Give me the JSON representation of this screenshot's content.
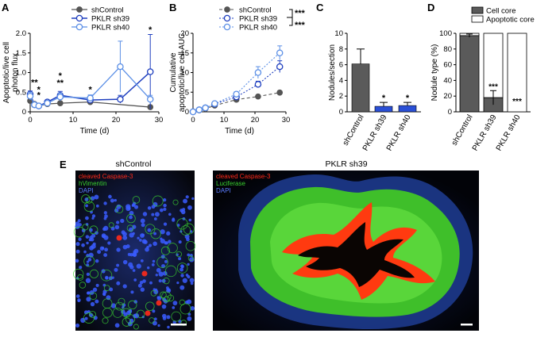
{
  "colors": {
    "control": "#555555",
    "sh39": "#1f3fbf",
    "sh40": "#5b8fe6",
    "cell_core": "#5a5a5a",
    "apoptotic_core": "#ffffff",
    "bar_blue": "#2a4fd6",
    "caspase": "#ff2a1a",
    "vimentin": "#39d030",
    "dapi": "#3a5cff"
  },
  "panels": {
    "A": "A",
    "B": "B",
    "C": "C",
    "D": "D",
    "E": "E"
  },
  "chart_data": [
    {
      "panel": "A",
      "type": "line",
      "xlabel": "Time (d)",
      "ylabel": "Apoptotic/live cell photon flux",
      "ylabel_lines": [
        "Apoptotic/live cell",
        "photon flux"
      ],
      "xlim": [
        0,
        30
      ],
      "ylim": [
        0,
        2.0
      ],
      "xticks": [
        0,
        10,
        20,
        30
      ],
      "yticks": [
        0.0,
        0.5,
        1.0,
        1.5,
        2.0
      ],
      "ytick_labels": [
        "0",
        "0.5",
        "1.0",
        "1.5",
        "2.0"
      ],
      "series": [
        {
          "name": "shControl",
          "x": [
            0,
            1,
            2,
            4,
            7,
            14,
            28
          ],
          "y": [
            0.28,
            0.2,
            0.15,
            0.2,
            0.22,
            0.25,
            0.12
          ],
          "err": [
            0.05,
            0.04,
            0.03,
            0.04,
            0.04,
            0.06,
            0.04
          ]
        },
        {
          "name": "PKLR sh39",
          "x": [
            0,
            1,
            2,
            4,
            7,
            14,
            21,
            28
          ],
          "y": [
            0.45,
            0.18,
            0.15,
            0.25,
            0.42,
            0.3,
            0.32,
            1.02
          ],
          "err": [
            0.08,
            0.05,
            0.04,
            0.05,
            0.1,
            0.08,
            0.1,
            0.95
          ]
        },
        {
          "name": "PKLR sh40",
          "x": [
            0,
            1,
            2,
            4,
            7,
            14,
            21,
            28
          ],
          "y": [
            0.4,
            0.18,
            0.15,
            0.22,
            0.38,
            0.35,
            1.15,
            0.32
          ],
          "err": [
            0.1,
            0.05,
            0.04,
            0.05,
            0.1,
            0.08,
            0.65,
            0.1
          ]
        }
      ],
      "annotations": [
        {
          "text": "**",
          "x": 1,
          "y": 0.68
        },
        {
          "text": "*",
          "x": 2,
          "y": 0.35
        },
        {
          "text": "*",
          "x": 2,
          "y": 0.5
        },
        {
          "text": "*",
          "x": 7,
          "y": 0.85
        },
        {
          "text": "**",
          "x": 7,
          "y": 0.67
        },
        {
          "text": "*",
          "x": 14,
          "y": 0.5
        },
        {
          "text": "*",
          "x": 28,
          "y": 2.02
        }
      ],
      "legend": "top-right"
    },
    {
      "panel": "B",
      "type": "line",
      "xlabel": "Time (d)",
      "ylabel": "Cumulative apoptotic/live cell AUC",
      "ylabel_lines": [
        "Cumulative",
        "apoptotic/live cell AUC"
      ],
      "xlim": [
        0,
        30
      ],
      "ylim": [
        0,
        20
      ],
      "xticks": [
        0,
        10,
        20,
        30
      ],
      "yticks": [
        0,
        5,
        10,
        15,
        20
      ],
      "series": [
        {
          "name": "shControl",
          "x": [
            0,
            2,
            4,
            7,
            14,
            21,
            28
          ],
          "y": [
            0,
            0.4,
            0.8,
            1.6,
            3.1,
            3.9,
            4.9
          ],
          "err": [
            0,
            0.1,
            0.1,
            0.2,
            0.3,
            0.3,
            0.4
          ]
        },
        {
          "name": "PKLR sh39",
          "x": [
            0,
            2,
            4,
            7,
            14,
            21,
            28
          ],
          "y": [
            0,
            0.5,
            1.0,
            2.0,
            3.8,
            7.0,
            11.5
          ],
          "err": [
            0,
            0.1,
            0.2,
            0.3,
            0.5,
            0.8,
            1.5
          ]
        },
        {
          "name": "PKLR sh40",
          "x": [
            0,
            2,
            4,
            7,
            14,
            21,
            28
          ],
          "y": [
            0,
            0.5,
            1.0,
            2.1,
            4.5,
            10.0,
            15.0
          ],
          "err": [
            0,
            0.1,
            0.2,
            0.3,
            0.6,
            1.5,
            1.8
          ]
        }
      ],
      "significance": [
        "***",
        "***"
      ],
      "legend": "top-left"
    },
    {
      "panel": "C",
      "type": "bar",
      "ylabel": "Nodules/section",
      "ylim": [
        0,
        10
      ],
      "yticks": [
        0,
        2,
        4,
        6,
        8,
        10
      ],
      "categories": [
        "shControl",
        "PKLR sh39",
        "PKLR sh40"
      ],
      "values": [
        6.1,
        0.7,
        0.8
      ],
      "err": [
        1.9,
        0.5,
        0.4
      ],
      "annotations": [
        "",
        "*",
        "*"
      ]
    },
    {
      "panel": "D",
      "type": "bar",
      "ylabel": "Nodule type (%)",
      "ylim": [
        0,
        100
      ],
      "yticks": [
        0,
        20,
        40,
        60,
        80,
        100
      ],
      "categories": [
        "shControl",
        "PKLR sh39",
        "PKLR sh40"
      ],
      "series": [
        {
          "name": "Cell core",
          "values": [
            97,
            18,
            0
          ],
          "err": [
            2,
            9,
            0
          ]
        },
        {
          "name": "Apoptotic core",
          "values": [
            3,
            82,
            100
          ]
        }
      ],
      "annotations": [
        "",
        "***",
        "***"
      ],
      "legend": "top"
    }
  ],
  "micrographs": [
    {
      "title": "shControl",
      "labels": [
        "cleaved Caspase-3",
        "hVimentin",
        "DAPI"
      ]
    },
    {
      "title": "PKLR sh39",
      "labels": [
        "cleaved Caspase-3",
        "Luciferase",
        "DAPI"
      ]
    }
  ]
}
